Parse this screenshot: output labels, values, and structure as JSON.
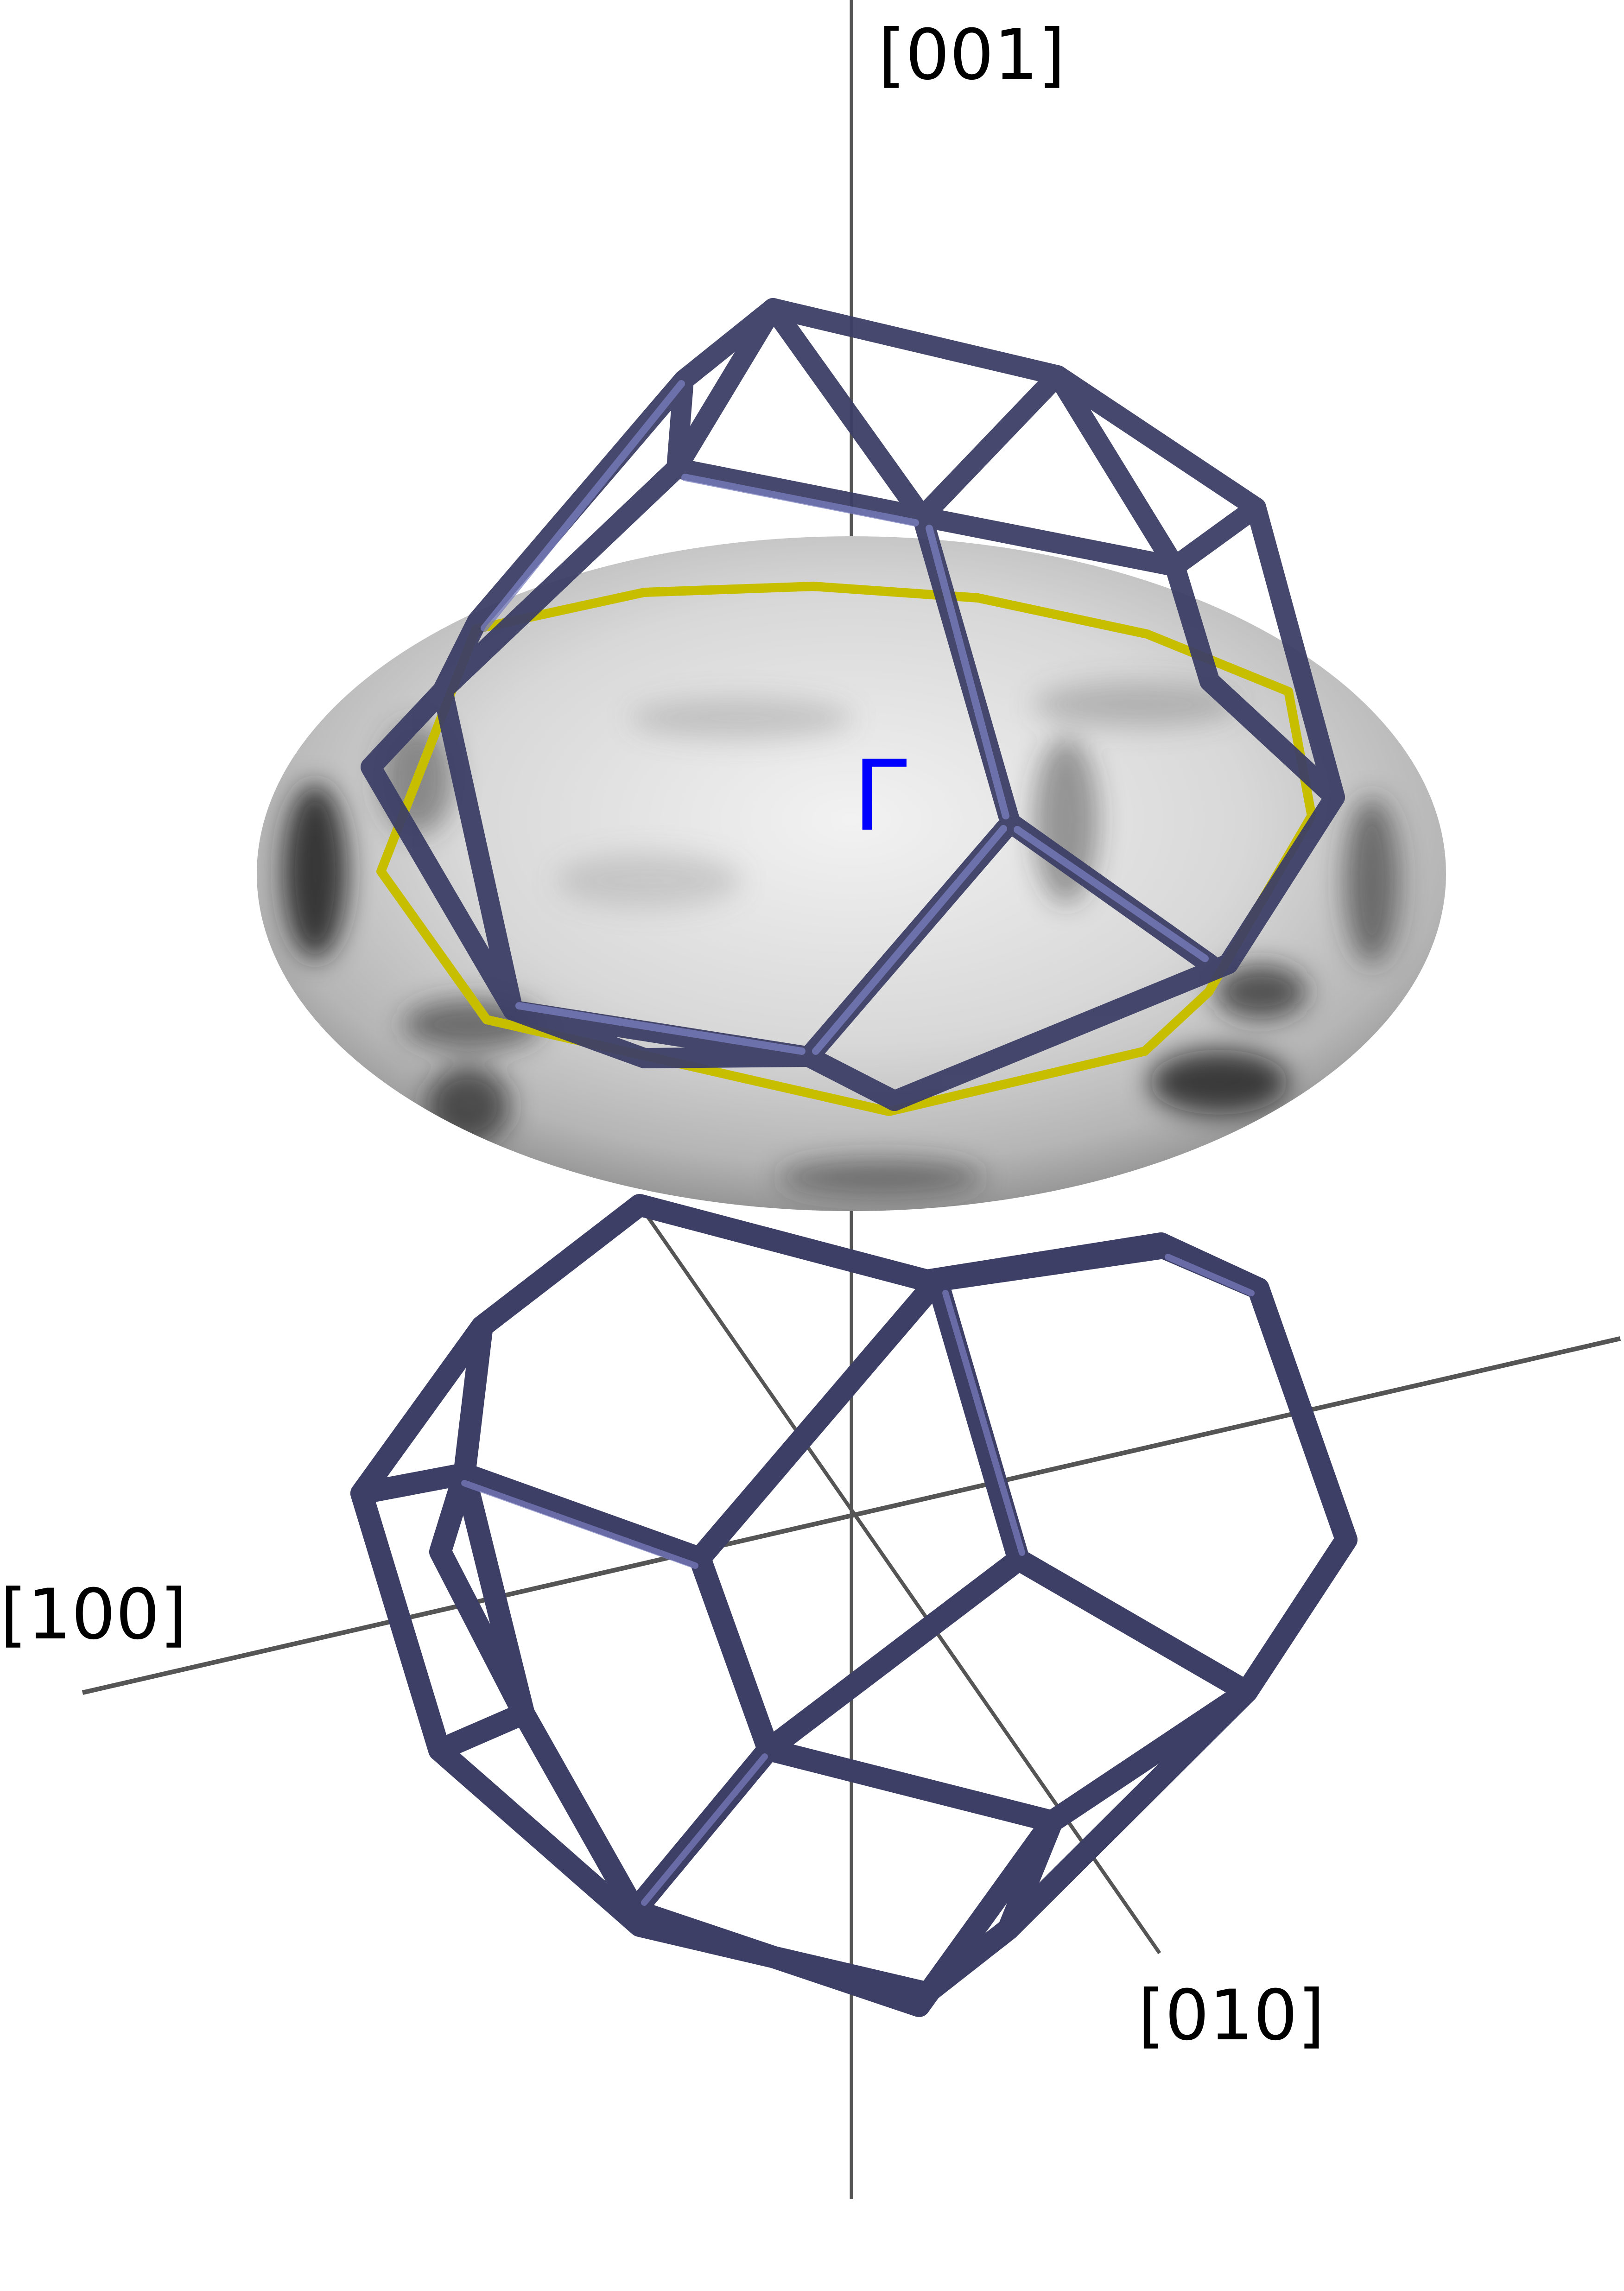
{
  "axes": {
    "z_label": "[001]",
    "x_label": "[100]",
    "y_label": "[010]"
  },
  "point_label": "Γ",
  "colors": {
    "axis": "#555555",
    "frame": "#3d3f66",
    "frame_highlight": "#7a7fc0",
    "slice_ring": "#c8be00",
    "gamma": "#0000ff"
  }
}
